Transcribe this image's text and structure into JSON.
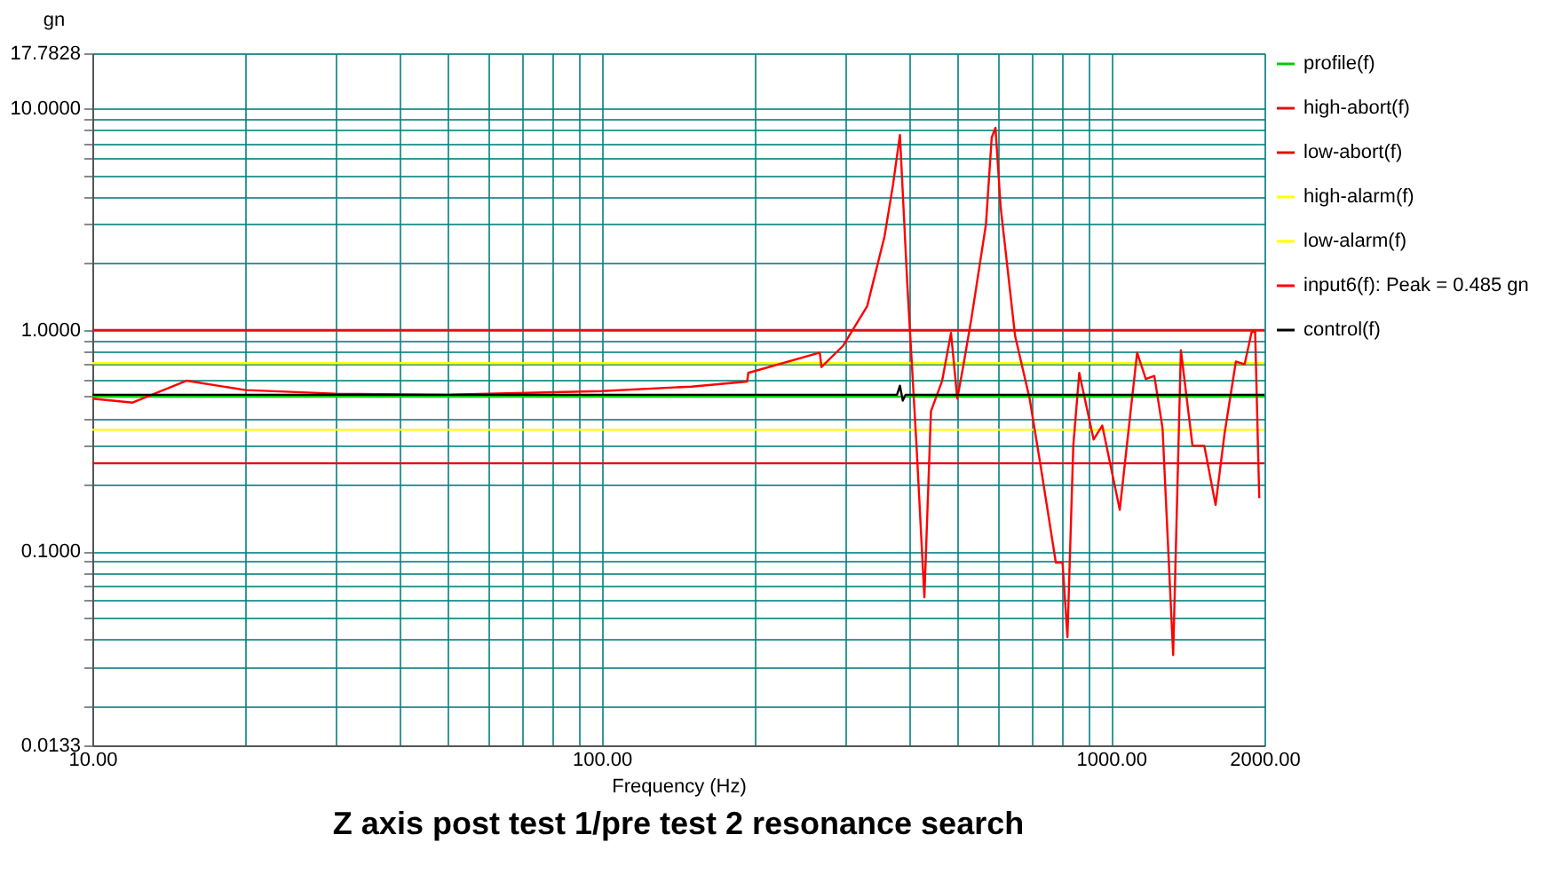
{
  "chart_data": {
    "type": "line",
    "title": "Z axis post test 1/pre test 2 resonance search",
    "xlabel": "Frequency (Hz)",
    "ylabel": "gn",
    "log": "xy",
    "grid": true,
    "legend": "right",
    "xlim": [
      10,
      2000
    ],
    "ylim": [
      0.0133,
      17.7828
    ],
    "xticks": [
      {
        "value": 10,
        "label": "10.00"
      },
      {
        "value": 20,
        "label": null
      },
      {
        "value": 30,
        "label": null
      },
      {
        "value": 40,
        "label": null
      },
      {
        "value": 50,
        "label": null
      },
      {
        "value": 60,
        "label": null
      },
      {
        "value": 70,
        "label": null
      },
      {
        "value": 80,
        "label": null
      },
      {
        "value": 90,
        "label": null
      },
      {
        "value": 100,
        "label": "100.00"
      },
      {
        "value": 200,
        "label": null
      },
      {
        "value": 300,
        "label": null
      },
      {
        "value": 400,
        "label": null
      },
      {
        "value": 500,
        "label": null
      },
      {
        "value": 600,
        "label": null
      },
      {
        "value": 700,
        "label": null
      },
      {
        "value": 800,
        "label": null
      },
      {
        "value": 900,
        "label": null
      },
      {
        "value": 1000,
        "label": "1000.00"
      },
      {
        "value": 2000,
        "label": "2000.00"
      }
    ],
    "yticks": [
      {
        "value": 0.0133,
        "label": "0.0133"
      },
      {
        "value": 0.02,
        "label": null
      },
      {
        "value": 0.03,
        "label": null
      },
      {
        "value": 0.04,
        "label": null
      },
      {
        "value": 0.05,
        "label": null
      },
      {
        "value": 0.06,
        "label": null
      },
      {
        "value": 0.07,
        "label": null
      },
      {
        "value": 0.08,
        "label": null
      },
      {
        "value": 0.09,
        "label": null
      },
      {
        "value": 0.1,
        "label": "0.1000"
      },
      {
        "value": 0.2,
        "label": null
      },
      {
        "value": 0.3,
        "label": null
      },
      {
        "value": 0.4,
        "label": null
      },
      {
        "value": 0.5,
        "label": null
      },
      {
        "value": 0.6,
        "label": null
      },
      {
        "value": 0.7,
        "label": null
      },
      {
        "value": 0.8,
        "label": null
      },
      {
        "value": 0.9,
        "label": null
      },
      {
        "value": 1,
        "label": "1.0000"
      },
      {
        "value": 2,
        "label": null
      },
      {
        "value": 3,
        "label": null
      },
      {
        "value": 4,
        "label": null
      },
      {
        "value": 5,
        "label": null
      },
      {
        "value": 6,
        "label": null
      },
      {
        "value": 7,
        "label": null
      },
      {
        "value": 8,
        "label": null
      },
      {
        "value": 9,
        "label": null
      },
      {
        "value": 10,
        "label": "10.0000"
      },
      {
        "value": 17.7828,
        "label": "17.7828"
      }
    ],
    "series": [
      {
        "name": "profile(f)",
        "color": "#00cc00",
        "x": [
          10,
          2000
        ],
        "values": [
          0.5,
          0.5
        ]
      },
      {
        "name": "high-abort(f)",
        "color": "#dd1111",
        "x": [
          10,
          2000
        ],
        "values": [
          1.0,
          1.0
        ]
      },
      {
        "name": "low-abort(f)",
        "color": "#dd1111",
        "x": [
          10,
          2000
        ],
        "values": [
          0.25,
          0.25
        ]
      },
      {
        "name": "high-alarm(f)",
        "color": "#ffff00",
        "x": [
          10,
          2000
        ],
        "values": [
          0.708,
          0.708
        ]
      },
      {
        "name": "low-alarm(f)",
        "color": "#ffff00",
        "x": [
          10,
          2000
        ],
        "values": [
          0.354,
          0.354
        ]
      },
      {
        "name": "input6(f): Peak = 0.485 gn",
        "color": "#ff0000",
        "x": [
          10,
          12,
          15.3,
          20,
          30,
          50,
          100,
          150,
          193,
          194,
          268,
          270,
          298,
          332,
          359,
          373,
          385,
          398,
          415,
          430,
          443,
          466,
          485,
          499,
          511,
          532,
          568,
          583,
          593,
          607,
          648,
          692,
          729,
          779,
          803,
          821,
          843,
          866,
          924,
          961,
          1040,
          1125,
          1170,
          1216,
          1262,
          1324,
          1371,
          1445,
          1524,
          1604,
          1670,
          1758,
          1829,
          1888,
          1918,
          1954
        ],
        "values": [
          0.49,
          0.47,
          0.59,
          0.535,
          0.516,
          0.51,
          0.53,
          0.555,
          0.585,
          0.64,
          0.79,
          0.68,
          0.85,
          1.28,
          2.64,
          4.5,
          7.6,
          1.62,
          0.3,
          0.062,
          0.43,
          0.59,
          0.97,
          0.49,
          0.66,
          1.13,
          3.0,
          7.4,
          8.2,
          3.6,
          0.94,
          0.49,
          0.235,
          0.089,
          0.089,
          0.041,
          0.3,
          0.64,
          0.32,
          0.37,
          0.154,
          0.79,
          0.6,
          0.62,
          0.36,
          0.034,
          0.81,
          0.3,
          0.3,
          0.162,
          0.34,
          0.72,
          0.7,
          0.98,
          0.98,
          0.174
        ]
      },
      {
        "name": "control(f)",
        "color": "#000000",
        "x": [
          10,
          380,
          385,
          390,
          395,
          600,
          2000
        ],
        "values": [
          0.51,
          0.51,
          0.56,
          0.48,
          0.51,
          0.51,
          0.51
        ]
      }
    ]
  }
}
